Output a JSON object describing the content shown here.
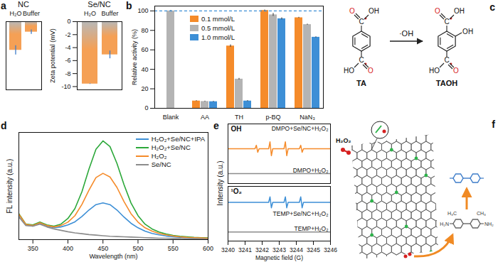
{
  "chart_data": [
    {
      "type": "bar",
      "title": "a",
      "y_label": "Zeta potential (mV)",
      "ylim": [
        -10.5,
        0
      ],
      "yticks": [
        0,
        -2,
        -4,
        -6,
        -8,
        -10
      ],
      "color": "#f5a055",
      "panels": [
        {
          "label": "NC",
          "categories": [
            "H₂O",
            "Buffer"
          ],
          "values": [
            -4.4,
            -1.6
          ],
          "errors": [
            0.7,
            0.35
          ]
        },
        {
          "label": "Se/NC",
          "categories": [
            "H₂O",
            "Buffer"
          ],
          "values": [
            -9.6,
            -5.1
          ],
          "errors": [
            0.05,
            0.6
          ]
        }
      ]
    },
    {
      "type": "bar",
      "title": "b",
      "y_label": "Relative activity (%)",
      "categories": [
        "Blank",
        "AA",
        "TH",
        "p-BQ",
        "NaN₃"
      ],
      "series": [
        {
          "name": "0.1 mmol/L",
          "color": "#f58b2a",
          "values": [
            null,
            7.5,
            64,
            100.5,
            93
          ],
          "errors": [
            null,
            0.4,
            1.2,
            0.5,
            0.5
          ]
        },
        {
          "name": "0.5 mmol/L",
          "color": "#b4b4b4",
          "values": [
            100,
            7,
            30,
            96,
            86
          ],
          "errors": [
            0.6,
            0.4,
            0.8,
            1.5,
            0.5
          ]
        },
        {
          "name": "1.0 mmol/L",
          "color": "#3d8fd6",
          "values": [
            null,
            6.8,
            7.5,
            92,
            73
          ],
          "errors": [
            null,
            0.4,
            0.5,
            1,
            0.5
          ]
        }
      ],
      "ylim": [
        0,
        105
      ],
      "yticks": [
        0,
        20,
        40,
        60,
        80,
        100
      ],
      "hline": 100,
      "legend": "upper center"
    },
    {
      "type": "line",
      "title": "d",
      "x_label": "Wavelength (nm)",
      "y_label": "FL intensity (a.u.)",
      "x": [
        330,
        340,
        350,
        360,
        370,
        380,
        390,
        400,
        410,
        420,
        430,
        440,
        450,
        460,
        470,
        480,
        490,
        500,
        510,
        520,
        530,
        540,
        550,
        560,
        570,
        580,
        590,
        600
      ],
      "xlim": [
        330,
        600
      ],
      "xticks": [
        350,
        400,
        450,
        500,
        550,
        600
      ],
      "ylim": [
        0,
        380
      ],
      "tick_labels": "x",
      "legend": "upper right",
      "series": [
        {
          "name": "H₂O₂+Se/NC+IPA",
          "color": "#3d8fd6",
          "values": [
            88,
            52,
            48,
            58,
            48,
            42,
            45,
            52,
            63,
            82,
            105,
            124,
            130,
            124,
            105,
            80,
            58,
            42,
            30,
            22,
            17,
            13,
            10,
            8,
            7,
            6,
            5,
            4
          ]
        },
        {
          "name": "H₂O₂+Se/NC",
          "color": "#2ca83a",
          "values": [
            92,
            55,
            52,
            62,
            52,
            48,
            55,
            75,
            110,
            170,
            250,
            320,
            350,
            330,
            270,
            195,
            130,
            85,
            55,
            38,
            27,
            20,
            15,
            12,
            10,
            8,
            7,
            6
          ]
        },
        {
          "name": "H₂O₂",
          "color": "#f58b2a",
          "values": [
            90,
            54,
            50,
            60,
            50,
            45,
            50,
            62,
            85,
            125,
            175,
            220,
            235,
            222,
            185,
            135,
            92,
            62,
            42,
            30,
            22,
            17,
            13,
            10,
            8,
            7,
            6,
            5
          ]
        },
        {
          "name": "Se/NC",
          "color": "#8c8c8c",
          "values": [
            80,
            50,
            48,
            55,
            45,
            38,
            33,
            28,
            24,
            21,
            18,
            16,
            14,
            12,
            11,
            10,
            9,
            8,
            7,
            6,
            5,
            5,
            4,
            4,
            3,
            3,
            3,
            2
          ]
        }
      ]
    },
    {
      "type": "line",
      "title": "e",
      "x_label": "Magnetic field (G)",
      "y_label": "Intensity (a.u.)",
      "xlim": [
        3240,
        3246
      ],
      "xticks": [
        3240,
        3241,
        3242,
        3243,
        3244,
        3245,
        3246
      ],
      "tick_labels": "x",
      "panels": [
        {
          "label": "OH",
          "ylim": [
            0,
            12
          ],
          "series": [
            {
              "name": "DMPO+Se/NC+H₂O₂",
              "color": "#f58b2a",
              "x": [
                3240,
                3241.58,
                3241.66,
                3241.74,
                3241.82,
                3242.38,
                3242.46,
                3242.54,
                3242.62,
                3243.28,
                3243.36,
                3243.44,
                3243.52,
                3244.18,
                3244.26,
                3244.34,
                3244.42,
                3246
              ],
              "values": [
                7,
                7,
                7.7,
                6.3,
                7,
                7,
                8.4,
                5.6,
                7,
                7,
                8.4,
                5.6,
                7,
                7,
                7.7,
                6.3,
                7,
                7
              ]
            },
            {
              "name": "DMPO+H₂O₂",
              "color": "#8c8c8c",
              "x": [
                3240,
                3246
              ],
              "values": [
                2,
                2
              ]
            }
          ]
        },
        {
          "label": "¹O₂",
          "ylim": [
            0,
            12
          ],
          "series": [
            {
              "name": "TEMP+Se/NC+H₂O₂",
              "color": "#3d8fd6",
              "x": [
                3240,
                3242.38,
                3242.46,
                3242.54,
                3242.62,
                3243.28,
                3243.36,
                3243.44,
                3243.52,
                3244.18,
                3244.26,
                3244.34,
                3244.42,
                3246
              ],
              "values": [
                8.5,
                8.5,
                9.7,
                7.3,
                8.5,
                8.5,
                9.7,
                7.3,
                8.5,
                8.5,
                9.7,
                7.3,
                8.5,
                8.5
              ]
            },
            {
              "name": "TEMP+H₂O₂",
              "color": "#8c8c8c",
              "x": [
                3240,
                3246
              ],
              "values": [
                2,
                2
              ]
            }
          ]
        }
      ]
    }
  ],
  "diagrams": [
    {
      "title": "c",
      "reagent": "·OH",
      "molecules": [
        {
          "label": "TA",
          "top": [
            "O",
            "C",
            "OH"
          ],
          "bottom": [
            "HO",
            "C",
            "O"
          ]
        },
        {
          "label": "TAOH",
          "top": [
            "O",
            "C",
            "OH"
          ],
          "bottom": [
            "HO",
            "C",
            "O"
          ],
          "ring": "OH"
        }
      ]
    },
    {
      "title": "f",
      "reactant": "H₂O₂",
      "substrate_labels": [
        "H₃C",
        "CH₃",
        "H₂N",
        "NH₂"
      ]
    }
  ]
}
